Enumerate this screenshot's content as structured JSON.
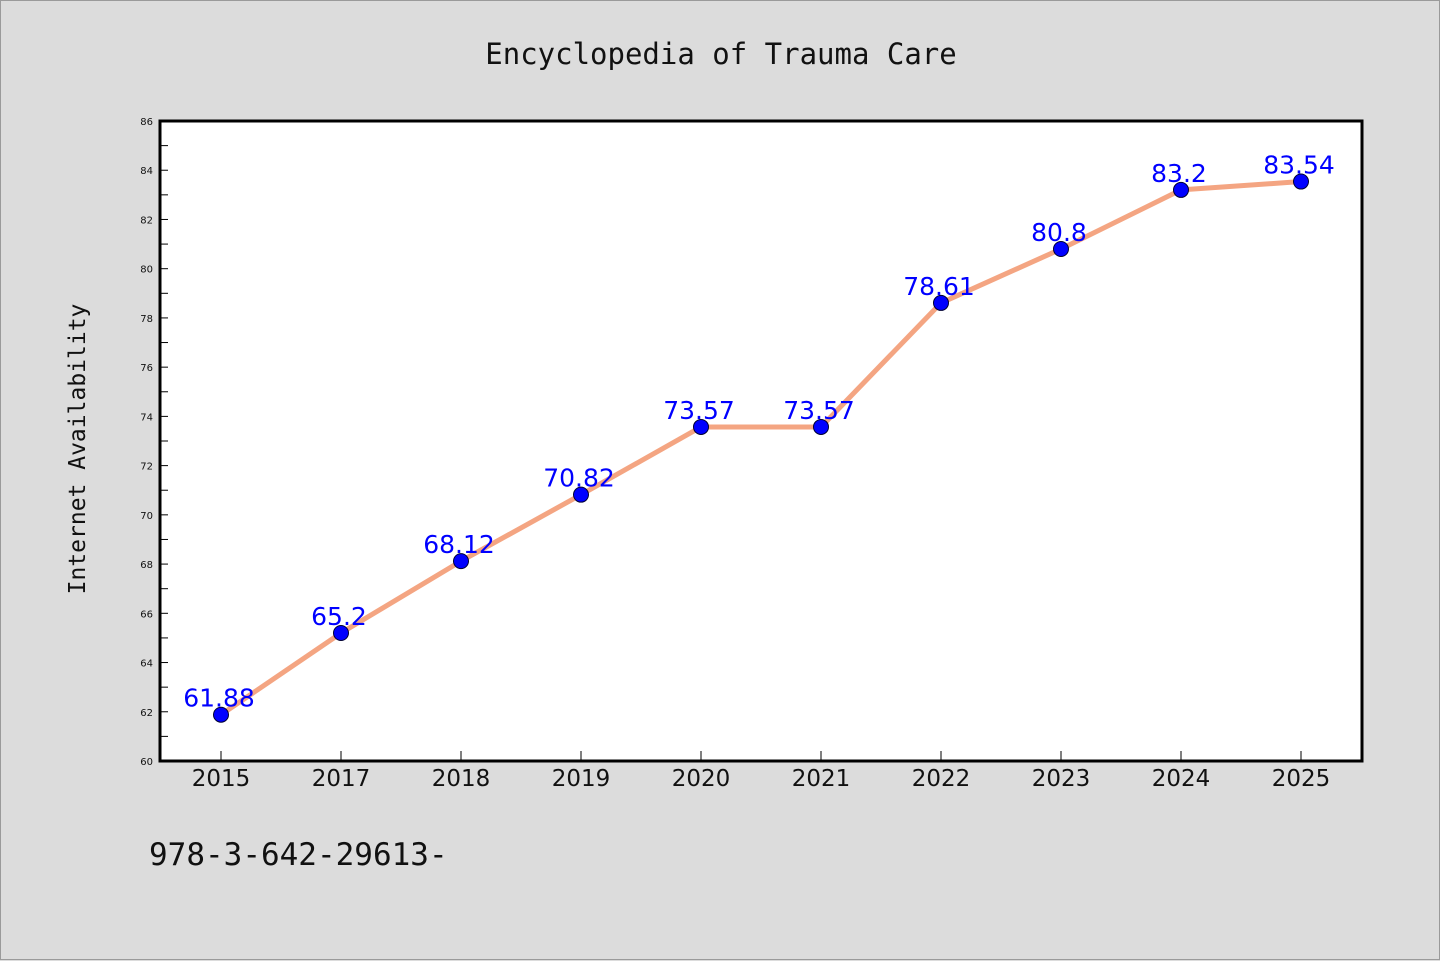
{
  "chart_data": {
    "type": "line",
    "title": "Encyclopedia of Trauma Care",
    "xlabel": "",
    "ylabel": "Internet Availability",
    "categories": [
      "2015",
      "2017",
      "2018",
      "2019",
      "2020",
      "2021",
      "2022",
      "2023",
      "2024",
      "2025"
    ],
    "series": [
      {
        "values": [
          61.88,
          65.2,
          68.12,
          70.82,
          73.57,
          73.57,
          78.61,
          80.8,
          83.2,
          83.54
        ],
        "labels": [
          "61.88",
          "65.2",
          "68.12",
          "70.82",
          "73.57",
          "73.57",
          "78.61",
          "80.8",
          "83.2",
          "83.54"
        ],
        "line_color": "#f4a582",
        "marker_color": "#0000ff"
      }
    ],
    "ylim": [
      60,
      86
    ],
    "yticks": [
      "60",
      "62",
      "64",
      "66",
      "68",
      "70",
      "72",
      "74",
      "76",
      "78",
      "80",
      "82",
      "84",
      "86"
    ],
    "grid": false,
    "legend": "none",
    "data_label_color": "#0000ff"
  },
  "footnote": "978-3-642-29613-",
  "colors": {
    "background": "#dcdcdc",
    "plot_background": "#ffffff",
    "axis": "#000000"
  }
}
